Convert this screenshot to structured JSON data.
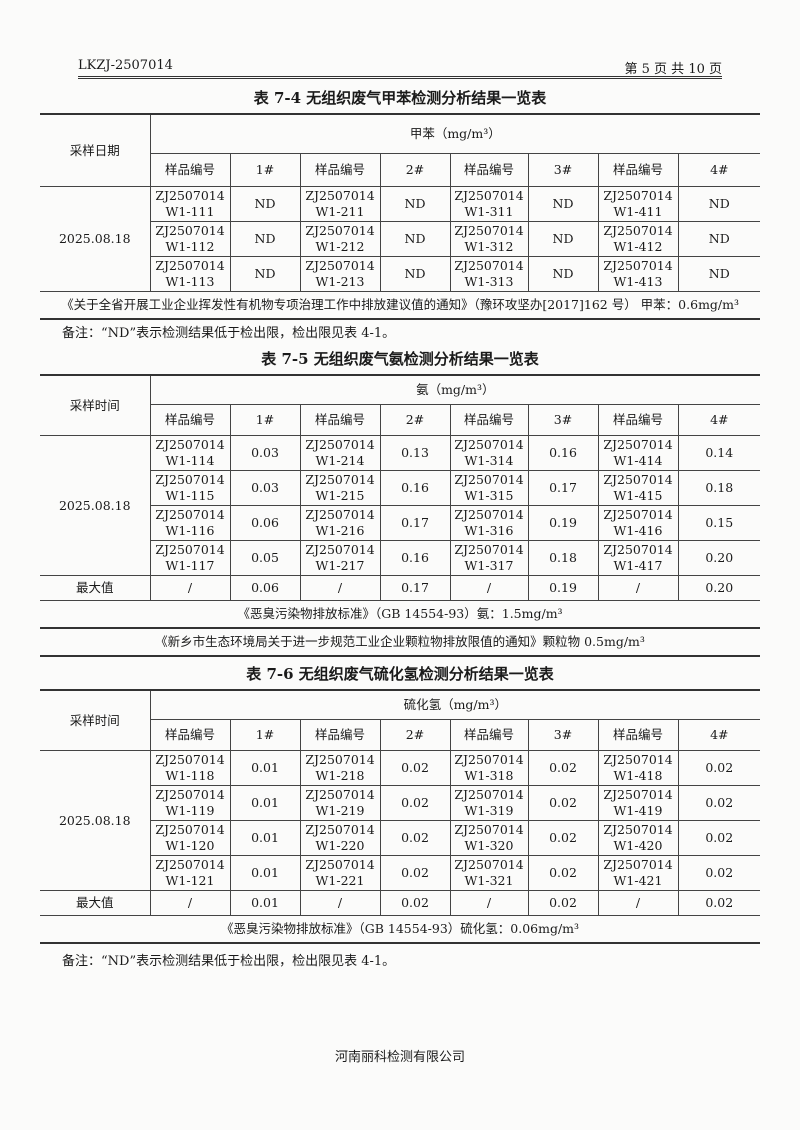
{
  "header": {
    "report_no": "LKZJ-2507014",
    "page": "第 5 页 共 10 页"
  },
  "tables": [
    {
      "title": "表 7-4 无组织废气甲苯检测分析结果一览表",
      "date_header": "采样日期",
      "pollutant": "甲苯（mg/m³）",
      "col_headers": [
        "样品编号",
        "1#",
        "样品编号",
        "2#",
        "样品编号",
        "3#",
        "样品编号",
        "4#"
      ],
      "date": "2025.08.18",
      "rows": [
        [
          "ZJ2507014 W1-111",
          "ND",
          "ZJ2507014 W1-211",
          "ND",
          "ZJ2507014 W1-311",
          "ND",
          "ZJ2507014 W1-411",
          "ND"
        ],
        [
          "ZJ2507014 W1-112",
          "ND",
          "ZJ2507014 W1-212",
          "ND",
          "ZJ2507014 W1-312",
          "ND",
          "ZJ2507014 W1-412",
          "ND"
        ],
        [
          "ZJ2507014 W1-113",
          "ND",
          "ZJ2507014 W1-213",
          "ND",
          "ZJ2507014 W1-313",
          "ND",
          "ZJ2507014 W1-413",
          "ND"
        ]
      ],
      "standards": [
        "《关于全省开展工业企业挥发性有机物专项治理工作中排放建议值的通知》（豫环攻坚办[2017]162 号） 甲苯：0.6mg/m³"
      ],
      "note": "备注：“ND”表示检测结果低于检出限，检出限见表 4-1。"
    },
    {
      "title": "表 7-5 无组织废气氨检测分析结果一览表",
      "date_header": "采样时间",
      "pollutant": "氨（mg/m³）",
      "col_headers": [
        "样品编号",
        "1#",
        "样品编号",
        "2#",
        "样品编号",
        "3#",
        "样品编号",
        "4#"
      ],
      "date": "2025.08.18",
      "rows": [
        [
          "ZJ2507014 W1-114",
          "0.03",
          "ZJ2507014 W1-214",
          "0.13",
          "ZJ2507014 W1-314",
          "0.16",
          "ZJ2507014 W1-414",
          "0.14"
        ],
        [
          "ZJ2507014 W1-115",
          "0.03",
          "ZJ2507014 W1-215",
          "0.16",
          "ZJ2507014 W1-315",
          "0.17",
          "ZJ2507014 W1-415",
          "0.18"
        ],
        [
          "ZJ2507014 W1-116",
          "0.06",
          "ZJ2507014 W1-216",
          "0.17",
          "ZJ2507014 W1-316",
          "0.19",
          "ZJ2507014 W1-416",
          "0.15"
        ],
        [
          "ZJ2507014 W1-117",
          "0.05",
          "ZJ2507014 W1-217",
          "0.16",
          "ZJ2507014 W1-317",
          "0.18",
          "ZJ2507014 W1-417",
          "0.20"
        ]
      ],
      "max_label": "最大值",
      "max_row": [
        "/",
        "0.06",
        "/",
        "0.17",
        "/",
        "0.19",
        "/",
        "0.20"
      ],
      "standards": [
        "《恶臭污染物排放标准》（GB 14554-93）氨：1.5mg/m³",
        "《新乡市生态环境局关于进一步规范工业企业颗粒物排放限值的通知》颗粒物 0.5mg/m³"
      ]
    },
    {
      "title": "表 7-6 无组织废气硫化氢检测分析结果一览表",
      "date_header": "采样时间",
      "pollutant": "硫化氢（mg/m³）",
      "col_headers": [
        "样品编号",
        "1#",
        "样品编号",
        "2#",
        "样品编号",
        "3#",
        "样品编号",
        "4#"
      ],
      "date": "2025.08.18",
      "rows": [
        [
          "ZJ2507014 W1-118",
          "0.01",
          "ZJ2507014 W1-218",
          "0.02",
          "ZJ2507014 W1-318",
          "0.02",
          "ZJ2507014 W1-418",
          "0.02"
        ],
        [
          "ZJ2507014 W1-119",
          "0.01",
          "ZJ2507014 W1-219",
          "0.02",
          "ZJ2507014 W1-319",
          "0.02",
          "ZJ2507014 W1-419",
          "0.02"
        ],
        [
          "ZJ2507014 W1-120",
          "0.01",
          "ZJ2507014 W1-220",
          "0.02",
          "ZJ2507014 W1-320",
          "0.02",
          "ZJ2507014 W1-420",
          "0.02"
        ],
        [
          "ZJ2507014 W1-121",
          "0.01",
          "ZJ2507014 W1-221",
          "0.02",
          "ZJ2507014 W1-321",
          "0.02",
          "ZJ2507014 W1-421",
          "0.02"
        ]
      ],
      "max_label": "最大值",
      "max_row": [
        "/",
        "0.01",
        "/",
        "0.02",
        "/",
        "0.02",
        "/",
        "0.02"
      ],
      "standards": [
        "《恶臭污染物排放标准》（GB 14554-93）硫化氢：0.06mg/m³"
      ],
      "note": "备注：“ND”表示检测结果低于检出限，检出限见表 4-1。"
    }
  ],
  "footer": "河南丽科检测有限公司"
}
